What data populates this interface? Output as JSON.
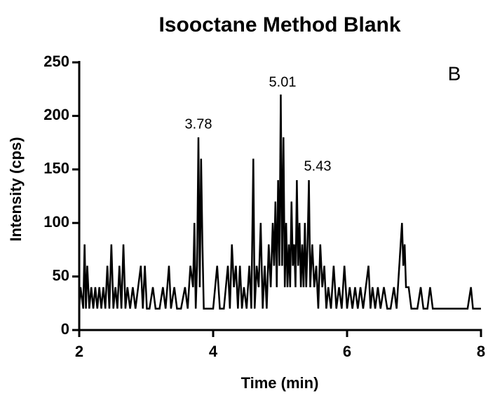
{
  "chart_data": {
    "type": "line",
    "title": "Isooctane Method Blank",
    "x_label": "Time (min)",
    "y_label": "Intensity (cps)",
    "color": "#000000",
    "x": [
      2,
      2.02,
      2.06,
      2.08,
      2.1,
      2.12,
      2.15,
      2.18,
      2.21,
      2.24,
      2.27,
      2.3,
      2.33,
      2.36,
      2.39,
      2.42,
      2.45,
      2.48,
      2.51,
      2.54,
      2.57,
      2.6,
      2.63,
      2.66,
      2.69,
      2.72,
      2.76,
      2.8,
      2.84,
      2.88,
      2.92,
      2.95,
      2.98,
      3.01,
      3.05,
      3.1,
      3.14,
      3.2,
      3.25,
      3.29,
      3.34,
      3.37,
      3.42,
      3.46,
      3.52,
      3.58,
      3.62,
      3.66,
      3.7,
      3.72,
      3.74,
      3.76,
      3.78,
      3.8,
      3.82,
      3.84,
      3.86,
      3.92,
      4,
      4.06,
      4.1,
      4.16,
      4.22,
      4.25,
      4.28,
      4.31,
      4.34,
      4.37,
      4.4,
      4.43,
      4.46,
      4.5,
      4.54,
      4.57,
      4.6,
      4.62,
      4.65,
      4.68,
      4.71,
      4.74,
      4.77,
      4.8,
      4.83,
      4.86,
      4.89,
      4.91,
      4.93,
      4.95,
      4.97,
      4.99,
      5.01,
      5.03,
      5.05,
      5.07,
      5.09,
      5.11,
      5.13,
      5.15,
      5.17,
      5.19,
      5.21,
      5.23,
      5.25,
      5.27,
      5.29,
      5.31,
      5.33,
      5.35,
      5.37,
      5.39,
      5.41,
      5.43,
      5.45,
      5.48,
      5.51,
      5.54,
      5.57,
      5.6,
      5.63,
      5.66,
      5.69,
      5.72,
      5.76,
      5.8,
      5.84,
      5.88,
      5.92,
      5.96,
      6,
      6.04,
      6.08,
      6.12,
      6.16,
      6.2,
      6.24,
      6.28,
      6.32,
      6.35,
      6.38,
      6.42,
      6.46,
      6.5,
      6.55,
      6.6,
      6.65,
      6.7,
      6.74,
      6.78,
      6.8,
      6.82,
      6.84,
      6.86,
      6.88,
      6.92,
      6.96,
      7.05,
      7.1,
      7.14,
      7.2,
      7.24,
      7.28,
      7.4,
      7.6,
      7.8,
      7.85,
      7.88,
      8
    ],
    "values": [
      20,
      40,
      20,
      80,
      20,
      60,
      20,
      40,
      20,
      40,
      20,
      40,
      20,
      40,
      20,
      60,
      20,
      80,
      20,
      40,
      20,
      60,
      20,
      80,
      20,
      40,
      20,
      40,
      20,
      40,
      60,
      20,
      60,
      20,
      20,
      40,
      20,
      20,
      40,
      20,
      60,
      20,
      40,
      20,
      20,
      40,
      20,
      60,
      40,
      100,
      20,
      60,
      180,
      40,
      160,
      80,
      20,
      20,
      20,
      60,
      20,
      20,
      60,
      20,
      80,
      40,
      60,
      20,
      60,
      20,
      40,
      20,
      60,
      20,
      160,
      20,
      60,
      40,
      100,
      20,
      60,
      20,
      80,
      40,
      100,
      60,
      120,
      40,
      140,
      60,
      220,
      60,
      180,
      40,
      100,
      40,
      80,
      40,
      120,
      60,
      80,
      40,
      140,
      60,
      100,
      40,
      80,
      40,
      100,
      40,
      80,
      140,
      40,
      80,
      40,
      60,
      20,
      80,
      40,
      60,
      20,
      40,
      20,
      60,
      20,
      40,
      20,
      60,
      20,
      40,
      20,
      40,
      20,
      40,
      20,
      40,
      60,
      20,
      40,
      20,
      40,
      20,
      40,
      20,
      20,
      40,
      20,
      60,
      80,
      100,
      60,
      80,
      40,
      40,
      20,
      20,
      40,
      20,
      20,
      40,
      20,
      20,
      20,
      20,
      40,
      20,
      20
    ],
    "xlim": [
      2,
      8
    ],
    "xticks": [
      2,
      4,
      6,
      8
    ],
    "ylim": [
      0,
      250
    ],
    "yticks": [
      0,
      50,
      100,
      150,
      200,
      250
    ],
    "annotations": [
      "3.78",
      "5.01",
      "5.43",
      "B"
    ]
  }
}
